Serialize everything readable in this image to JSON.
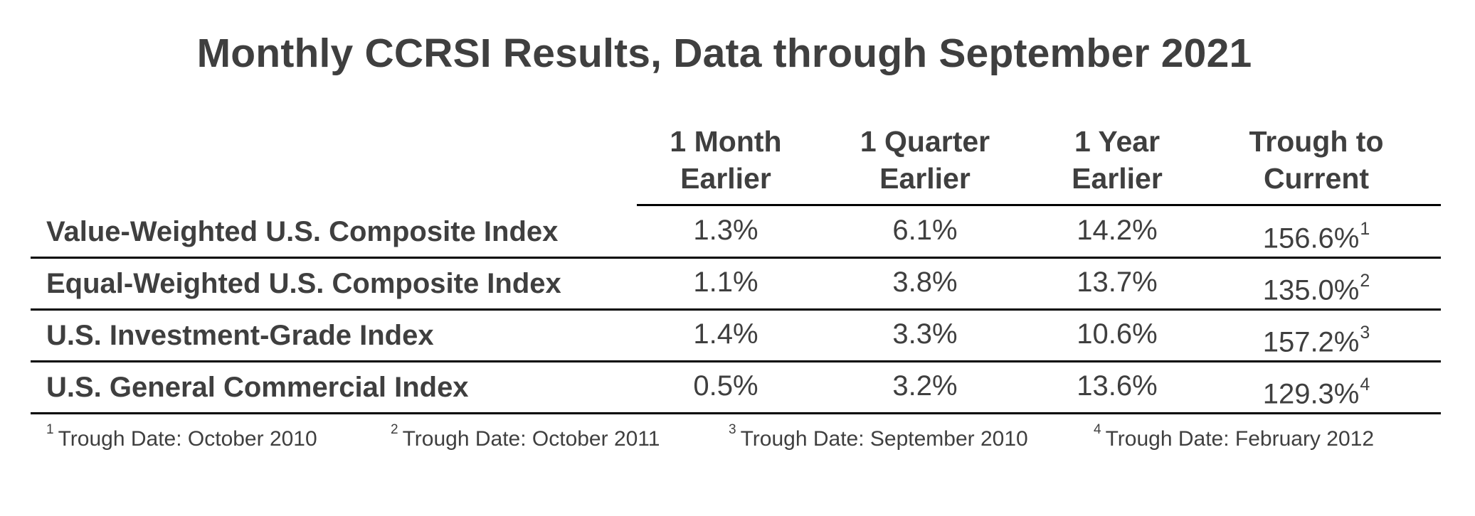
{
  "chart_data": {
    "type": "table",
    "title": "Monthly CCRSI Results, Data through September 2021",
    "columns": [
      [
        "1 Month",
        "Earlier"
      ],
      [
        "1 Quarter",
        "Earlier"
      ],
      [
        "1 Year",
        "Earlier"
      ],
      [
        "Trough to",
        "Current"
      ]
    ],
    "rows": [
      {
        "label": "Value-Weighted U.S. Composite Index",
        "values": [
          "1.3%",
          "6.1%",
          "14.2%",
          "156.6%"
        ],
        "note": "1"
      },
      {
        "label": "Equal-Weighted U.S. Composite Index",
        "values": [
          "1.1%",
          "3.8%",
          "13.7%",
          "135.0%"
        ],
        "note": "2"
      },
      {
        "label": "U.S. Investment-Grade Index",
        "values": [
          "1.4%",
          "3.3%",
          "10.6%",
          "157.2%"
        ],
        "note": "3"
      },
      {
        "label": "U.S. General Commercial Index",
        "values": [
          "0.5%",
          "3.2%",
          "13.6%",
          "129.3%"
        ],
        "note": "4"
      }
    ],
    "footnotes": [
      {
        "mark": "1",
        "text": "Trough Date: October 2010"
      },
      {
        "mark": "2",
        "text": "Trough Date: October 2011"
      },
      {
        "mark": "3",
        "text": "Trough Date: September 2010"
      },
      {
        "mark": "4",
        "text": "Trough Date: February 2012"
      }
    ]
  }
}
